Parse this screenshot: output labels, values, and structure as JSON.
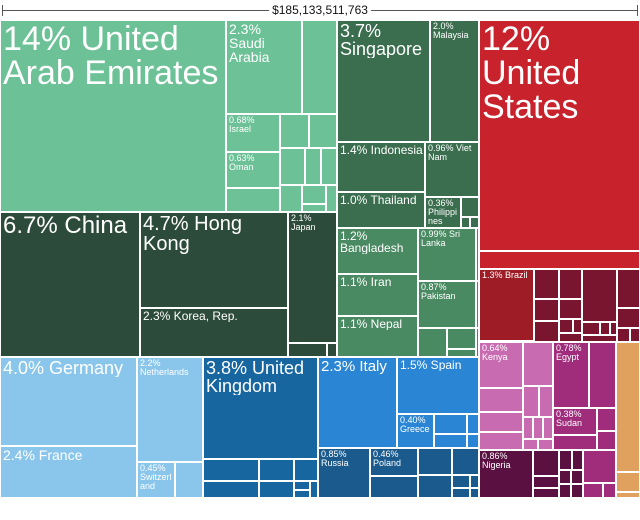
{
  "chart_data": {
    "type": "treemap",
    "total": "$185,133,511,763",
    "colors": {
      "asia_light": "#6cc196",
      "asia_mid": "#3b6e4f",
      "asia_dark": "#2d4b3a",
      "asia_alt": "#4a8a62",
      "americas": "#c8232c",
      "americas_dark": "#9e1c25",
      "africa_dark": "#7a1530",
      "africa_mid": "#5a1040",
      "africa_pink": "#c96bb0",
      "africa_magenta": "#a02c7c",
      "europe_light": "#8ac6ec",
      "europe_blue": "#1866a0",
      "europe_mid": "#2a86d4",
      "europe_dark": "#1a5a8c",
      "oceania": "#e0a15e"
    },
    "items": [
      {
        "label": "14% United Arab Emirates",
        "region": "asia_light"
      },
      {
        "label": "2.3% Saudi Arabia",
        "region": "asia_light"
      },
      {
        "label": "0.68% Israel",
        "region": "asia_light"
      },
      {
        "label": "0.63% Oman",
        "region": "asia_light"
      },
      {
        "label": "3.7% Singapore",
        "region": "asia_mid"
      },
      {
        "label": "2.0% Malaysia",
        "region": "asia_mid"
      },
      {
        "label": "1.4% Indonesia",
        "region": "asia_mid"
      },
      {
        "label": "0.96% Viet Nam",
        "region": "asia_mid"
      },
      {
        "label": "1.0% Thailand",
        "region": "asia_mid"
      },
      {
        "label": "0.36% Philippines",
        "region": "asia_mid"
      },
      {
        "label": "6.7% China",
        "region": "asia_dark"
      },
      {
        "label": "4.7% Hong Kong",
        "region": "asia_dark"
      },
      {
        "label": "2.3% Korea, Rep.",
        "region": "asia_dark"
      },
      {
        "label": "2.1% Japan",
        "region": "asia_dark"
      },
      {
        "label": "1.2% Bangladesh",
        "region": "asia_alt"
      },
      {
        "label": "0.99% Sri Lanka",
        "region": "asia_alt"
      },
      {
        "label": "1.1% Iran",
        "region": "asia_alt"
      },
      {
        "label": "0.87% Pakistan",
        "region": "asia_alt"
      },
      {
        "label": "1.1% Nepal",
        "region": "asia_alt"
      },
      {
        "label": "12% United States",
        "region": "americas"
      },
      {
        "label": "1.3% Brazil",
        "region": "americas_dark"
      },
      {
        "label": "0.64% Kenya",
        "region": "africa_pink"
      },
      {
        "label": "0.78% Egypt",
        "region": "africa_magenta"
      },
      {
        "label": "0.38% Sudan",
        "region": "africa_magenta"
      },
      {
        "label": "0.86% Nigeria",
        "region": "africa_mid"
      },
      {
        "label": "4.0% Germany",
        "region": "europe_light"
      },
      {
        "label": "2.2% Netherlands",
        "region": "europe_light"
      },
      {
        "label": "2.4% France",
        "region": "europe_light"
      },
      {
        "label": "0.45% Switzerland",
        "region": "europe_light"
      },
      {
        "label": "3.8% United Kingdom",
        "region": "europe_blue"
      },
      {
        "label": "2.3% Italy",
        "region": "europe_mid"
      },
      {
        "label": "1.5% Spain",
        "region": "europe_mid"
      },
      {
        "label": "0.40% Greece",
        "region": "europe_mid"
      },
      {
        "label": "0.85% Russia",
        "region": "europe_dark"
      },
      {
        "label": "0.46% Poland",
        "region": "europe_dark"
      }
    ]
  }
}
